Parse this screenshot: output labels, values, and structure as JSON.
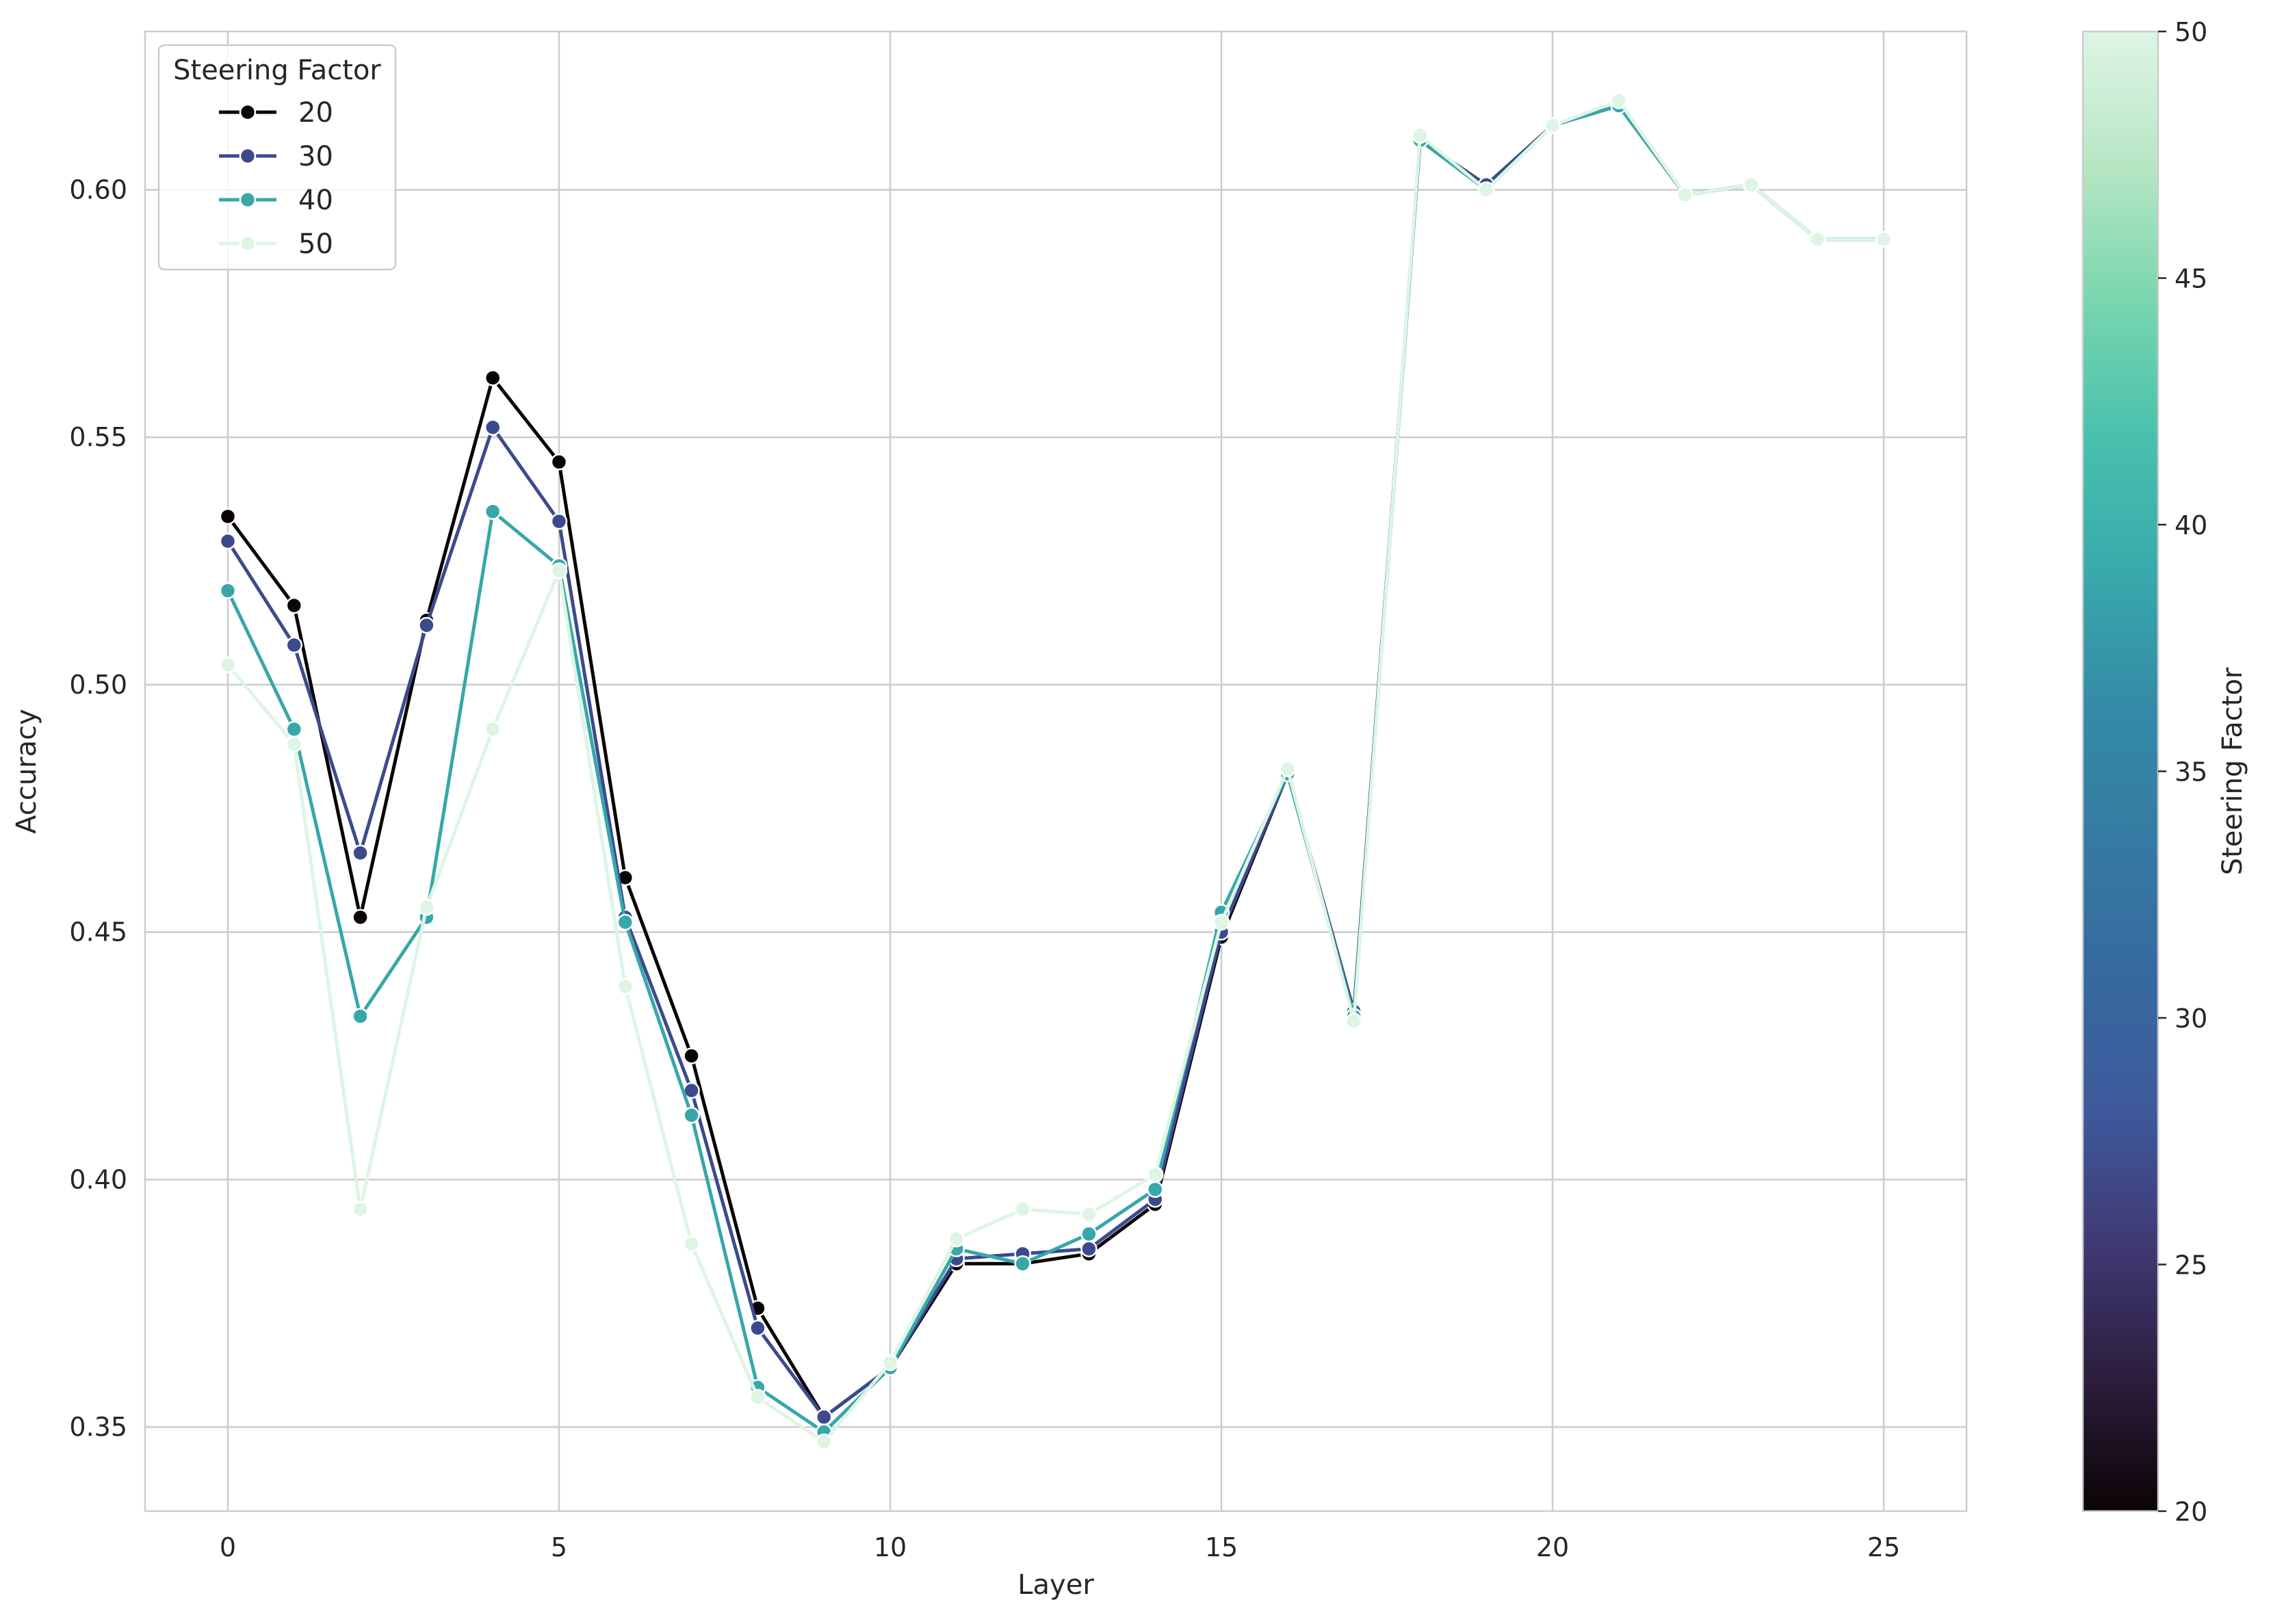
{
  "chart_data": {
    "type": "line",
    "xlabel": "Layer",
    "ylabel": "Accuracy",
    "xlim": [
      -1.25,
      26.25
    ],
    "ylim": [
      0.333,
      0.632
    ],
    "xticks": [
      0,
      5,
      10,
      15,
      20,
      25
    ],
    "xtick_labels": [
      "0",
      "5",
      "10",
      "15",
      "20",
      "25"
    ],
    "yticks": [
      0.35,
      0.4,
      0.45,
      0.5,
      0.55,
      0.6
    ],
    "ytick_labels": [
      "0.35",
      "0.40",
      "0.45",
      "0.50",
      "0.55",
      "0.60"
    ],
    "grid": true,
    "legend": {
      "title": "Steering Factor",
      "placement": "upper-left"
    },
    "x": [
      0,
      1,
      2,
      3,
      4,
      5,
      6,
      7,
      8,
      9,
      10,
      11,
      12,
      13,
      14,
      15,
      16,
      17,
      18,
      19,
      20,
      21,
      22,
      23,
      24,
      25
    ],
    "series": [
      {
        "name": "20",
        "color": "#0b0405",
        "values": [
          0.534,
          0.516,
          0.453,
          0.513,
          0.562,
          0.545,
          0.461,
          0.425,
          0.374,
          0.352,
          0.362,
          0.383,
          0.383,
          0.385,
          0.395,
          0.449,
          0.482,
          0.434,
          0.61,
          0.601,
          0.613,
          0.617,
          0.599,
          0.601,
          0.59,
          0.59
        ]
      },
      {
        "name": "30",
        "color": "#3c4a8d",
        "values": [
          0.529,
          0.508,
          0.466,
          0.512,
          0.552,
          0.533,
          0.453,
          0.418,
          0.37,
          0.352,
          0.362,
          0.384,
          0.385,
          0.386,
          0.396,
          0.45,
          0.482,
          0.434,
          0.61,
          0.601,
          0.613,
          0.617,
          0.599,
          0.601,
          0.59,
          0.59
        ]
      },
      {
        "name": "40",
        "color": "#37a7a9",
        "values": [
          0.519,
          0.491,
          0.433,
          0.453,
          0.535,
          0.524,
          0.452,
          0.413,
          0.358,
          0.349,
          0.362,
          0.386,
          0.383,
          0.389,
          0.398,
          0.454,
          0.482,
          0.433,
          0.61,
          0.6,
          0.613,
          0.617,
          0.599,
          0.601,
          0.59,
          0.59
        ]
      },
      {
        "name": "50",
        "color": "#def5e5",
        "values": [
          0.504,
          0.488,
          0.394,
          0.455,
          0.491,
          0.523,
          0.439,
          0.387,
          0.356,
          0.347,
          0.363,
          0.388,
          0.394,
          0.393,
          0.401,
          0.452,
          0.483,
          0.432,
          0.611,
          0.6,
          0.613,
          0.618,
          0.599,
          0.601,
          0.59,
          0.59
        ]
      }
    ],
    "colorbar": {
      "label": "Steering Factor",
      "range": [
        20,
        50
      ],
      "ticks": [
        20,
        25,
        30,
        35,
        40,
        45,
        50
      ],
      "tick_labels": [
        "20",
        "25",
        "30",
        "35",
        "40",
        "45",
        "50"
      ],
      "colormap": "mako",
      "colors": [
        "#0b0405",
        "#2d1e3e",
        "#403a75",
        "#3e5a9c",
        "#366a9f",
        "#357ba3",
        "#348ba6",
        "#38aaac",
        "#49c1ad",
        "#78d6ae",
        "#b7e6c4",
        "#def5e5"
      ]
    }
  }
}
